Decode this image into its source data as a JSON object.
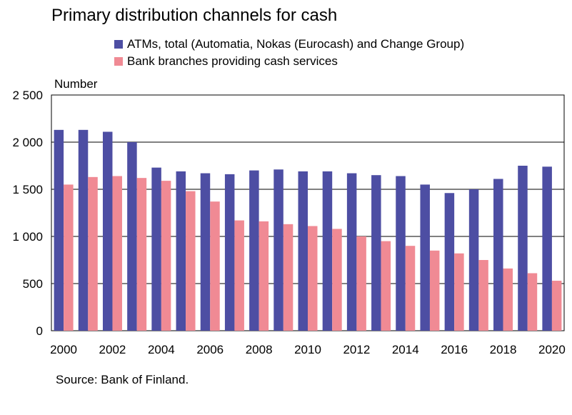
{
  "chart_data": {
    "type": "bar",
    "title": "Primary distribution channels for cash",
    "ylabel": "Number",
    "source": "Source: Bank of Finland.",
    "categories": [
      "2000",
      "2001",
      "2002",
      "2003",
      "2004",
      "2005",
      "2006",
      "2007",
      "2008",
      "2009",
      "2010",
      "2011",
      "2012",
      "2013",
      "2014",
      "2015",
      "2016",
      "2017",
      "2018",
      "2019",
      "2020"
    ],
    "x_tick_labels": [
      "2000",
      "2002",
      "2004",
      "2006",
      "2008",
      "2010",
      "2012",
      "2014",
      "2016",
      "2018",
      "2020"
    ],
    "y_tick_labels": [
      "0",
      "500",
      "1 000",
      "1 500",
      "2 000",
      "2 500"
    ],
    "y_ticks": [
      0,
      500,
      1000,
      1500,
      2000,
      2500
    ],
    "ylim": [
      0,
      2500
    ],
    "grid": true,
    "legend_position": "top",
    "series": [
      {
        "name": "ATMs, total (Automatia, Nokas (Eurocash) and Change Group)",
        "color": "#4d4ea3",
        "values": [
          2130,
          2130,
          2110,
          2000,
          1730,
          1690,
          1670,
          1660,
          1700,
          1710,
          1690,
          1690,
          1670,
          1650,
          1640,
          1550,
          1460,
          1500,
          1610,
          1750,
          1740
        ]
      },
      {
        "name": "Bank branches providing cash services",
        "color": "#f08a94",
        "values": [
          1550,
          1630,
          1640,
          1620,
          1590,
          1480,
          1370,
          1170,
          1160,
          1130,
          1110,
          1080,
          1000,
          950,
          900,
          850,
          820,
          750,
          660,
          610,
          530
        ]
      }
    ]
  }
}
